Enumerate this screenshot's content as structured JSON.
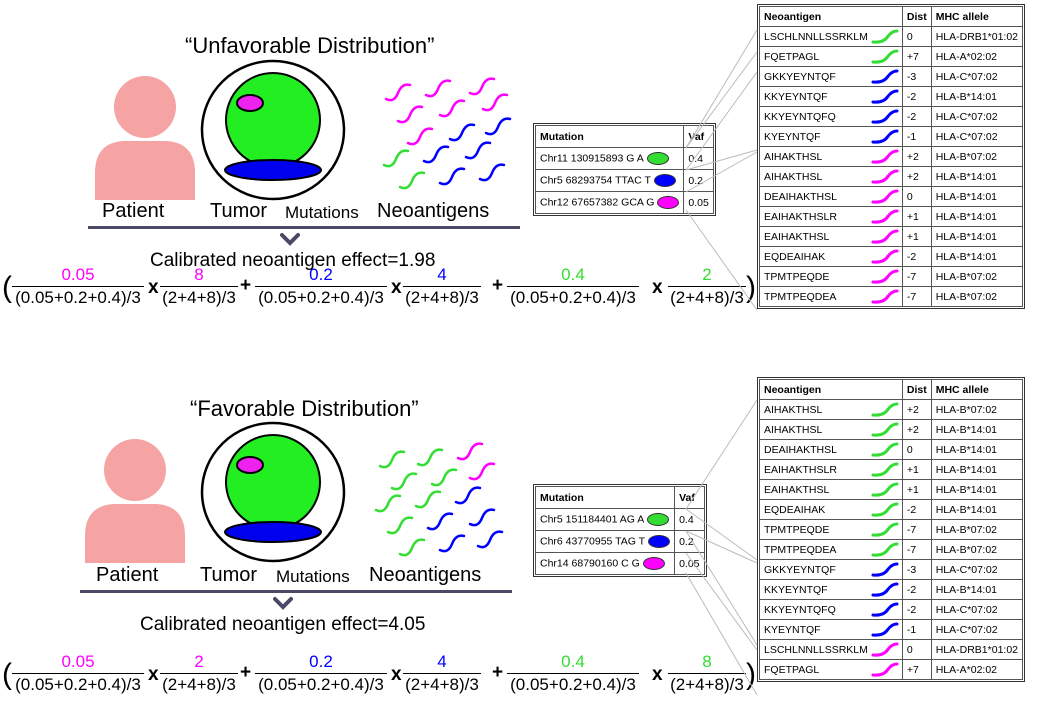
{
  "colors": {
    "magenta": "#ff00ff",
    "blue": "#0000ff",
    "green": "#33dd33",
    "patient": "#f5a3a3"
  },
  "panels": [
    {
      "title": "“Unfavorable Distribution”",
      "labels": {
        "patient": "Patient",
        "tumor": "Tumor",
        "mutations": "Mutations",
        "neoantigens": "Neoantigens"
      },
      "effect_text": "Calibrated neoantigen effect=1.98",
      "formula": [
        {
          "vaf": "0.05",
          "vaf_color": "magenta",
          "count": "8",
          "count_color": "magenta"
        },
        {
          "vaf": "0.2",
          "vaf_color": "blue",
          "count": "4",
          "count_color": "blue"
        },
        {
          "vaf": "0.4",
          "vaf_color": "green",
          "count": "2",
          "count_color": "green"
        }
      ],
      "vaf_den": "(0.05+0.2+0.4)/3",
      "count_den": "(2+4+8)/3",
      "plus": "+",
      "times": "x",
      "open_paren": "(",
      "close_paren": ")",
      "mutation_table": {
        "headers": [
          "Mutation",
          "Vaf"
        ],
        "rows": [
          {
            "mutation": "Chr11 130915893 G A",
            "color": "green",
            "vaf": "0.4"
          },
          {
            "mutation": "Chr5 68293754 TTAC T",
            "color": "blue",
            "vaf": "0.2"
          },
          {
            "mutation": "Chr12 67657382 GCA G",
            "color": "magenta",
            "vaf": "0.05"
          }
        ]
      },
      "neo_table": {
        "headers": [
          "Neoantigen",
          "Dist",
          "MHC allele"
        ],
        "rows": [
          {
            "seq": "LSCHLNNLLSSRKLM",
            "color": "green",
            "dist": "0",
            "allele": "HLA-DRB1*01:02"
          },
          {
            "seq": "FQETPAGL",
            "color": "green",
            "dist": "+7",
            "allele": "HLA-A*02:02"
          },
          {
            "seq": "GKKYEYNTQF",
            "color": "blue",
            "dist": "-3",
            "allele": "HLA-C*07:02"
          },
          {
            "seq": "KKYEYNTQF",
            "color": "blue",
            "dist": "-2",
            "allele": "HLA-B*14:01"
          },
          {
            "seq": "KKYEYNTQFQ",
            "color": "blue",
            "dist": "-2",
            "allele": "HLA-C*07:02"
          },
          {
            "seq": "KYEYNTQF",
            "color": "blue",
            "dist": "-1",
            "allele": "HLA-C*07:02"
          },
          {
            "seq": "AIHAKTHSL",
            "color": "magenta",
            "dist": "+2",
            "allele": "HLA-B*07:02"
          },
          {
            "seq": "AIHAKTHSL",
            "color": "magenta",
            "dist": "+2",
            "allele": "HLA-B*14:01"
          },
          {
            "seq": "DEAIHAKTHSL",
            "color": "magenta",
            "dist": "0",
            "allele": "HLA-B*14:01"
          },
          {
            "seq": "EAIHAKTHSLR",
            "color": "magenta",
            "dist": "+1",
            "allele": "HLA-B*14:01"
          },
          {
            "seq": "EAIHAKTHSL",
            "color": "magenta",
            "dist": "+1",
            "allele": "HLA-B*14:01"
          },
          {
            "seq": "EQDEAIHAK",
            "color": "magenta",
            "dist": "-2",
            "allele": "HLA-B*14:01"
          },
          {
            "seq": "TPMTPEQDE",
            "color": "magenta",
            "dist": "-7",
            "allele": "HLA-B*07:02"
          },
          {
            "seq": "TPMTPEQDEA",
            "color": "magenta",
            "dist": "-7",
            "allele": "HLA-B*07:02"
          }
        ]
      }
    },
    {
      "title": "“Favorable Distribution”",
      "labels": {
        "patient": "Patient",
        "tumor": "Tumor",
        "mutations": "Mutations",
        "neoantigens": "Neoantigens"
      },
      "effect_text": "Calibrated neoantigen effect=4.05",
      "formula": [
        {
          "vaf": "0.05",
          "vaf_color": "magenta",
          "count": "2",
          "count_color": "magenta"
        },
        {
          "vaf": "0.2",
          "vaf_color": "blue",
          "count": "4",
          "count_color": "blue"
        },
        {
          "vaf": "0.4",
          "vaf_color": "green",
          "count": "8",
          "count_color": "green"
        }
      ],
      "vaf_den": "(0.05+0.2+0.4)/3",
      "count_den": "(2+4+8)/3",
      "plus": "+",
      "times": "x",
      "open_paren": "(",
      "close_paren": ")",
      "mutation_table": {
        "headers": [
          "Mutation",
          "Vaf"
        ],
        "rows": [
          {
            "mutation": "Chr5 151184401 AG A",
            "color": "green",
            "vaf": "0.4"
          },
          {
            "mutation": "Chr6 43770955  TAG T",
            "color": "blue",
            "vaf": "0.2"
          },
          {
            "mutation": "Chr14 68790160 C G",
            "color": "magenta",
            "vaf": "0.05"
          }
        ]
      },
      "neo_table": {
        "headers": [
          "Neoantigen",
          "Dist",
          "MHC allele"
        ],
        "rows": [
          {
            "seq": "AIHAKTHSL",
            "color": "green",
            "dist": "+2",
            "allele": "HLA-B*07:02"
          },
          {
            "seq": "AIHAKTHSL",
            "color": "green",
            "dist": "+2",
            "allele": "HLA-B*14:01"
          },
          {
            "seq": "DEAIHAKTHSL",
            "color": "green",
            "dist": "0",
            "allele": "HLA-B*14:01"
          },
          {
            "seq": "EAIHAKTHSLR",
            "color": "green",
            "dist": "+1",
            "allele": "HLA-B*14:01"
          },
          {
            "seq": "EAIHAKTHSL",
            "color": "green",
            "dist": "+1",
            "allele": "HLA-B*14:01"
          },
          {
            "seq": "EQDEAIHAK",
            "color": "green",
            "dist": "-2",
            "allele": "HLA-B*14:01"
          },
          {
            "seq": "TPMTPEQDE",
            "color": "green",
            "dist": "-7",
            "allele": "HLA-B*07:02"
          },
          {
            "seq": "TPMTPEQDEA",
            "color": "green",
            "dist": "-7",
            "allele": "HLA-B*07:02"
          },
          {
            "seq": "GKKYEYNTQF",
            "color": "blue",
            "dist": "-3",
            "allele": "HLA-C*07:02"
          },
          {
            "seq": "KKYEYNTQF",
            "color": "blue",
            "dist": "-2",
            "allele": "HLA-B*14:01"
          },
          {
            "seq": "KKYEYNTQFQ",
            "color": "blue",
            "dist": "-2",
            "allele": "HLA-C*07:02"
          },
          {
            "seq": "KYEYNTQF",
            "color": "blue",
            "dist": "-1",
            "allele": "HLA-C*07:02"
          },
          {
            "seq": "LSCHLNNLLSSRKLM",
            "color": "magenta",
            "dist": "0",
            "allele": "HLA-DRB1*01:02"
          },
          {
            "seq": "FQETPAGL",
            "color": "magenta",
            "dist": "+7",
            "allele": "HLA-A*02:02"
          }
        ]
      }
    }
  ]
}
